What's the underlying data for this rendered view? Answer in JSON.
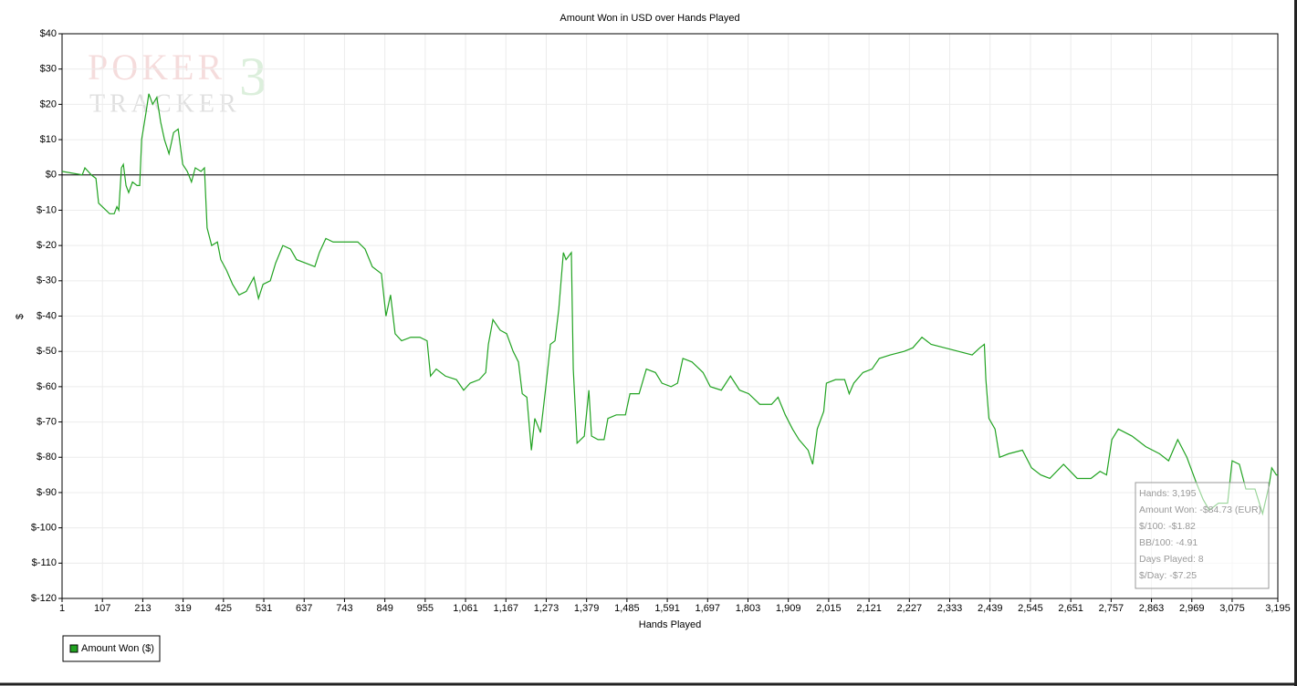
{
  "chart_data": {
    "type": "line",
    "title": "Amount Won in USD over Hands Played",
    "xlabel": "Hands Played",
    "ylabel": "$",
    "watermark": [
      "POKER",
      "TRACKER",
      "3"
    ],
    "grid": true,
    "legend": "bottom-left",
    "xlim": [
      1,
      3195
    ],
    "ylim": [
      -120,
      40
    ],
    "xticks": [
      1,
      107,
      213,
      319,
      425,
      531,
      637,
      743,
      849,
      955,
      {
        "value": 1061,
        "label": "1,061"
      },
      {
        "value": 1167,
        "label": "1,167"
      },
      {
        "value": 1273,
        "label": "1,273"
      },
      {
        "value": 1379,
        "label": "1,379"
      },
      {
        "value": 1485,
        "label": "1,485"
      },
      {
        "value": 1591,
        "label": "1,591"
      },
      {
        "value": 1697,
        "label": "1,697"
      },
      {
        "value": 1803,
        "label": "1,803"
      },
      {
        "value": 1909,
        "label": "1,909"
      },
      {
        "value": 2015,
        "label": "2,015"
      },
      {
        "value": 2121,
        "label": "2,121"
      },
      {
        "value": 2227,
        "label": "2,227"
      },
      {
        "value": 2333,
        "label": "2,333"
      },
      {
        "value": 2439,
        "label": "2,439"
      },
      {
        "value": 2545,
        "label": "2,545"
      },
      {
        "value": 2651,
        "label": "2,651"
      },
      {
        "value": 2757,
        "label": "2,757"
      },
      {
        "value": 2863,
        "label": "2,863"
      },
      {
        "value": 2969,
        "label": "2,969"
      },
      {
        "value": 3075,
        "label": "3,075"
      },
      {
        "value": 3195,
        "label": "3,195"
      }
    ],
    "yticks": [
      {
        "value": 40,
        "label": "$40"
      },
      {
        "value": 30,
        "label": "$30"
      },
      {
        "value": 20,
        "label": "$20"
      },
      {
        "value": 10,
        "label": "$10"
      },
      {
        "value": 0,
        "label": "$0"
      },
      {
        "value": -10,
        "label": "$-10"
      },
      {
        "value": -20,
        "label": "$-20"
      },
      {
        "value": -30,
        "label": "$-30"
      },
      {
        "value": -40,
        "label": "$-40"
      },
      {
        "value": -50,
        "label": "$-50"
      },
      {
        "value": -60,
        "label": "$-60"
      },
      {
        "value": -70,
        "label": "$-70"
      },
      {
        "value": -80,
        "label": "$-80"
      },
      {
        "value": -90,
        "label": "$-90"
      },
      {
        "value": -100,
        "label": "$-100"
      },
      {
        "value": -110,
        "label": "$-110"
      },
      {
        "value": -120,
        "label": "$-120"
      }
    ],
    "x": [
      1,
      54,
      61,
      78,
      90,
      97,
      126,
      138,
      145,
      150,
      157,
      162,
      169,
      176,
      186,
      198,
      205,
      210,
      222,
      229,
      239,
      250,
      260,
      270,
      282,
      294,
      306,
      318,
      330,
      341,
      351,
      366,
      375,
      382,
      394,
      409,
      418,
      433,
      449,
      466,
      485,
      505,
      517,
      529,
      548,
      562,
      581,
      601,
      617,
      641,
      665,
      677,
      694,
      713,
      749,
      778,
      797,
      816,
      840,
      852,
      864,
      876,
      893,
      917,
      941,
      960,
      969,
      984,
      1008,
      1037,
      1056,
      1073,
      1097,
      1114,
      1121,
      1133,
      1152,
      1169,
      1186,
      1200,
      1210,
      1222,
      1234,
      1243,
      1258,
      1272,
      1284,
      1296,
      1306,
      1318,
      1325,
      1339,
      1344,
      1354,
      1373,
      1385,
      1392,
      1409,
      1425,
      1435,
      1457,
      1481,
      1493,
      1517,
      1536,
      1560,
      1577,
      1601,
      1618,
      1632,
      1656,
      1685,
      1704,
      1733,
      1757,
      1781,
      1805,
      1834,
      1865,
      1882,
      1901,
      1920,
      1937,
      1961,
      1973,
      1985,
      2002,
      2009,
      2033,
      2057,
      2069,
      2081,
      2105,
      2129,
      2148,
      2177,
      2213,
      2236,
      2260,
      2284,
      2320,
      2356,
      2392,
      2412,
      2424,
      2428,
      2436,
      2452,
      2464,
      2488,
      2524,
      2548,
      2572,
      2596,
      2632,
      2668,
      2704,
      2728,
      2745,
      2759,
      2776,
      2812,
      2848,
      2884,
      2908,
      2932,
      2956,
      2980,
      2999,
      3015,
      3039,
      3063,
      3075,
      3094,
      3111,
      3135,
      3155,
      3172,
      3179,
      3191,
      3195
    ],
    "series": [
      {
        "name": "Amount Won ($)",
        "color": "#22a322",
        "values": [
          1,
          0,
          2,
          0,
          -1,
          -8,
          -11,
          -11,
          -9,
          -10,
          2,
          3,
          -3,
          -5,
          -2,
          -3,
          -3,
          10,
          18,
          23,
          20,
          22,
          15,
          10,
          6,
          12,
          13,
          3,
          1,
          -2,
          2,
          1,
          2,
          -15,
          -20,
          -19,
          -24,
          -27,
          -31,
          -34,
          -33,
          -29,
          -35,
          -31,
          -30,
          -25,
          -20,
          -21,
          -24,
          -25,
          -26,
          -22,
          -18,
          -19,
          -19,
          -19,
          -21,
          -26,
          -28,
          -40,
          -34,
          -45,
          -47,
          -46,
          -46,
          -47,
          -57,
          -55,
          -57,
          -58,
          -61,
          -59,
          -58,
          -56,
          -48,
          -41,
          -44,
          -45,
          -50,
          -53,
          -62,
          -63,
          -78,
          -69,
          -73,
          -60,
          -48,
          -47,
          -38,
          -22,
          -24,
          -22,
          -55,
          -76,
          -74,
          -61,
          -74,
          -75,
          -75,
          -69,
          -68,
          -68,
          -62,
          -62,
          -55,
          -56,
          -59,
          -60,
          -59,
          -52,
          -53,
          -56,
          -60,
          -61,
          -57,
          -61,
          -62,
          -65,
          -65,
          -63,
          -68,
          -72,
          -75,
          -78,
          -82,
          -72,
          -67,
          -59,
          -58,
          -58,
          -62,
          -59,
          -56,
          -55,
          -52,
          -51,
          -50,
          -49,
          -46,
          -48,
          -49,
          -50,
          -51,
          -49,
          -48,
          -58,
          -69,
          -72,
          -80,
          -79,
          -78,
          -83,
          -85,
          -86,
          -82,
          -86,
          -86,
          -84,
          -85,
          -75,
          -72,
          -74,
          -77,
          -79,
          -81,
          -75,
          -80,
          -87,
          -92,
          -95,
          -93,
          -93,
          -81,
          -82,
          -89,
          -89,
          -96,
          -88,
          -83,
          -85,
          -85
        ]
      }
    ],
    "tooltip": [
      "Hands: 3,195",
      "Amount Won: -$84.73 (EUR)",
      "$/100: -$1.82",
      "BB/100: -4.91",
      "Days Played: 8",
      "$/Day: -$7.25"
    ]
  }
}
